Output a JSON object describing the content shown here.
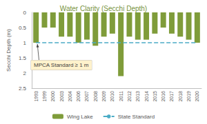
{
  "chart_data": {
    "type": "bar",
    "title": "Water Clarity (Secchi Depth)",
    "y_label": "Secchi Depth (m)",
    "categories": [
      "1993",
      "1999",
      "2000",
      "2003",
      "2004",
      "2006",
      "2007",
      "2008",
      "2009",
      "2010",
      "2011",
      "2012",
      "2013",
      "2014",
      "2015",
      "2016",
      "2017",
      "2018",
      "2019",
      "2020"
    ],
    "series": [
      {
        "name": "Wing Lake",
        "type": "bar",
        "color": "#7f9c3a",
        "values": [
          1.0,
          0.5,
          0.5,
          0.8,
          0.8,
          1.0,
          0.9,
          1.1,
          0.8,
          0.7,
          2.1,
          0.8,
          0.9,
          0.9,
          0.7,
          0.5,
          0.7,
          0.8,
          0.9,
          1.0
        ]
      },
      {
        "name": "State Standard",
        "type": "line",
        "color": "#4bacc6",
        "line_style": "dashed",
        "values": [
          1,
          1,
          1,
          1,
          1,
          1,
          1,
          1,
          1,
          1,
          1,
          1,
          1,
          1,
          1,
          1,
          1,
          1,
          1,
          1
        ]
      }
    ],
    "annotations": [
      {
        "text": "MPCA Standard ≥ 1 m"
      }
    ],
    "ylim": [
      0,
      2.5
    ],
    "yticks": [
      0,
      0.5,
      1,
      1.5,
      2,
      2.5
    ],
    "grid": false,
    "legend": "bottom"
  }
}
